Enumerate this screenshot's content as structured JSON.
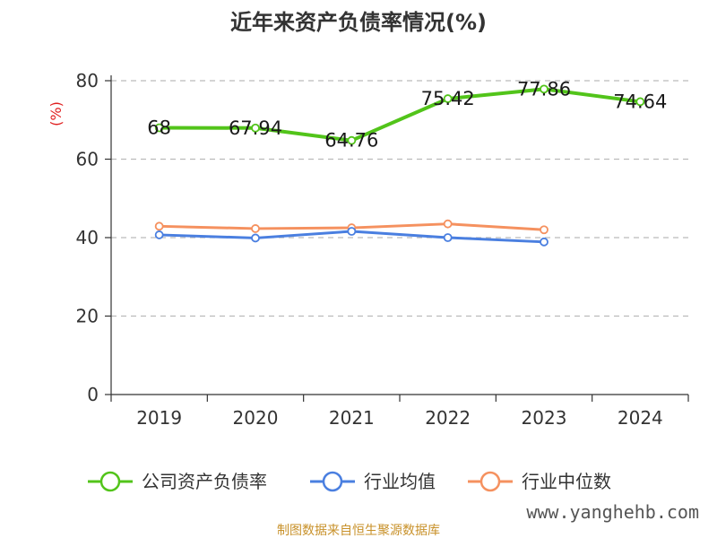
{
  "chart_data": {
    "type": "line",
    "title": "近年来资产负债率情况(%)",
    "ylabel": "(%)",
    "xlabel": "",
    "categories": [
      "2019",
      "2020",
      "2021",
      "2022",
      "2023",
      "2024"
    ],
    "ylim": [
      0,
      80
    ],
    "yticks": [
      0,
      20,
      40,
      60,
      80
    ],
    "grid": true,
    "legend_position": "bottom",
    "series": [
      {
        "name": "公司资产负债率",
        "color": "#52c41a",
        "values": [
          68,
          67.94,
          64.76,
          75.42,
          77.86,
          74.64
        ],
        "labels": [
          "68",
          "67.94",
          "64.76",
          "75.42",
          "77.86",
          "74.64"
        ]
      },
      {
        "name": "行业均值",
        "color": "#4a7fe0",
        "values": [
          40.7,
          39.9,
          41.6,
          40.0,
          38.9,
          null
        ]
      },
      {
        "name": "行业中位数",
        "color": "#f5915f",
        "values": [
          42.9,
          42.3,
          42.5,
          43.5,
          42.0,
          null
        ]
      }
    ]
  },
  "footer": {
    "source": "制图数据来自恒生聚源数据库",
    "watermark": "www.yanghehb.com"
  }
}
